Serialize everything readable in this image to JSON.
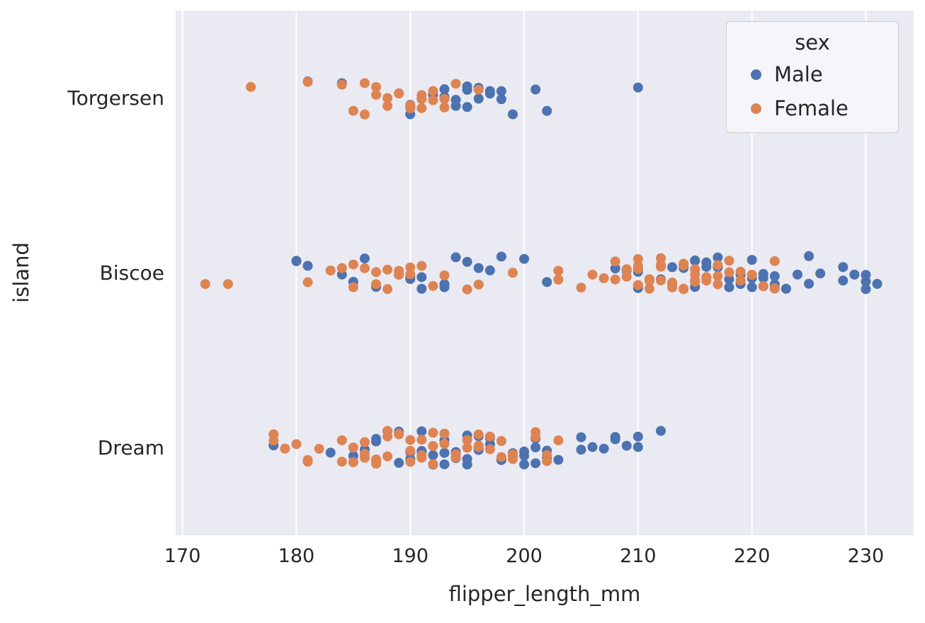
{
  "chart_data": {
    "type": "scatter",
    "variant": "strip",
    "title": "",
    "xlabel": "flipper_length_mm",
    "ylabel": "island",
    "categories": [
      "Torgersen",
      "Biscoe",
      "Dream"
    ],
    "x_ticks": [
      170,
      180,
      190,
      200,
      210,
      220,
      230
    ],
    "xlim": [
      169.4,
      234.2
    ],
    "grid": "vertical",
    "legend": {
      "title": "sex",
      "position": "upper-right"
    },
    "style": {
      "plot_bg": "#eaeaf2",
      "grid_color": "#ffffff",
      "text_color": "#262626",
      "male_color": "#4c72b0",
      "female_color": "#dd8452"
    },
    "series": [
      {
        "name": "Male",
        "color": "#4c72b0",
        "data": {
          "Torgersen": [
            181,
            184,
            190,
            190,
            191,
            192,
            193,
            193,
            194,
            194,
            195,
            195,
            195,
            196,
            196,
            197,
            197,
            198,
            198,
            199,
            201,
            202,
            210
          ],
          "Biscoe": [
            180,
            180,
            181,
            184,
            185,
            186,
            187,
            189,
            190,
            190,
            191,
            191,
            193,
            193,
            194,
            195,
            196,
            197,
            198,
            200,
            202,
            208,
            209,
            210,
            210,
            211,
            212,
            213,
            214,
            215,
            215,
            215,
            216,
            216,
            216,
            217,
            217,
            218,
            218,
            219,
            219,
            220,
            220,
            220,
            221,
            221,
            221,
            222,
            222,
            222,
            223,
            223,
            224,
            225,
            225,
            226,
            228,
            228,
            229,
            230,
            230,
            230,
            231
          ],
          "Dream": [
            178,
            183,
            185,
            186,
            187,
            187,
            188,
            189,
            189,
            190,
            190,
            191,
            191,
            191,
            192,
            192,
            193,
            193,
            193,
            194,
            194,
            195,
            195,
            195,
            196,
            196,
            196,
            197,
            197,
            198,
            198,
            199,
            199,
            200,
            200,
            200,
            201,
            201,
            201,
            202,
            202,
            203,
            205,
            205,
            206,
            207,
            208,
            208,
            209,
            210,
            210,
            212
          ]
        }
      },
      {
        "name": "Female",
        "color": "#dd8452",
        "data": {
          "Torgersen": [
            176,
            181,
            184,
            185,
            186,
            186,
            187,
            187,
            188,
            188,
            189,
            189,
            190,
            190,
            190,
            191,
            191,
            191,
            192,
            192,
            193,
            193,
            194,
            196
          ],
          "Biscoe": [
            172,
            174,
            181,
            183,
            184,
            185,
            185,
            186,
            187,
            187,
            188,
            188,
            189,
            189,
            190,
            190,
            191,
            192,
            193,
            195,
            196,
            199,
            203,
            203,
            205,
            206,
            207,
            208,
            208,
            209,
            209,
            210,
            210,
            210,
            210,
            211,
            211,
            211,
            212,
            212,
            212,
            212,
            213,
            213,
            213,
            214,
            214,
            214,
            214,
            215,
            215,
            215,
            215,
            216,
            216,
            216,
            217,
            217,
            217,
            218,
            218,
            219,
            219,
            220,
            220,
            221,
            222,
            222
          ],
          "Dream": [
            178,
            178,
            179,
            180,
            181,
            181,
            182,
            184,
            184,
            185,
            185,
            186,
            186,
            186,
            187,
            187,
            187,
            188,
            188,
            188,
            189,
            189,
            190,
            190,
            190,
            191,
            191,
            191,
            192,
            192,
            192,
            193,
            193,
            193,
            194,
            194,
            195,
            195,
            196,
            196,
            196,
            197,
            197,
            198,
            198,
            199,
            199,
            201,
            201,
            202,
            202,
            203
          ]
        }
      }
    ]
  }
}
